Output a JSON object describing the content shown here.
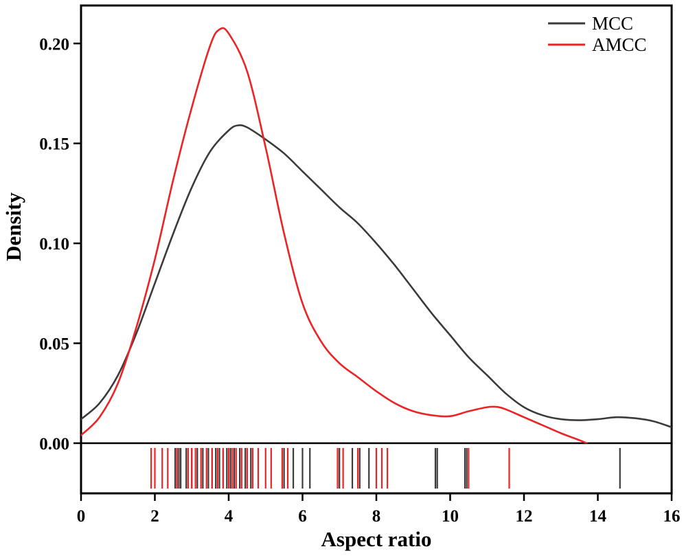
{
  "chart_data": {
    "type": "line",
    "variant": "kde-density-with-rug",
    "title": "",
    "xlabel": "Aspect ratio",
    "ylabel": "Density",
    "xlim": [
      0,
      16
    ],
    "ylim": [
      0,
      0.219
    ],
    "grid": false,
    "legend": {
      "position": "top-right"
    },
    "xticks": {
      "values": [
        0,
        2,
        4,
        6,
        8,
        10,
        12,
        14,
        16
      ],
      "labels": [
        "0",
        "2",
        "4",
        "6",
        "8",
        "10",
        "12",
        "14",
        "16"
      ]
    },
    "yticks": {
      "values": [
        0,
        0.05,
        0.1,
        0.15,
        0.2
      ],
      "labels": [
        "0.00",
        "0.05",
        "0.10",
        "0.15",
        "0.20"
      ]
    },
    "series": [
      {
        "name": "MCC",
        "color": "#3b3b3b",
        "x": [
          0,
          0.5,
          1,
          1.5,
          2,
          2.5,
          3,
          3.5,
          4,
          4.25,
          4.5,
          5,
          5.5,
          6,
          6.5,
          7,
          7.5,
          8,
          8.5,
          9,
          9.5,
          10,
          10.5,
          11,
          11.5,
          12,
          12.5,
          13,
          13.5,
          14,
          14.5,
          15,
          15.5,
          16
        ],
        "y": [
          0.012,
          0.02,
          0.034,
          0.055,
          0.08,
          0.105,
          0.128,
          0.146,
          0.1565,
          0.159,
          0.158,
          0.152,
          0.145,
          0.136,
          0.127,
          0.118,
          0.11,
          0.1,
          0.089,
          0.077,
          0.065,
          0.054,
          0.043,
          0.034,
          0.025,
          0.018,
          0.014,
          0.012,
          0.0115,
          0.012,
          0.013,
          0.0125,
          0.011,
          0.008
        ],
        "rug": [
          2.55,
          2.6,
          2.65,
          2.7,
          2.85,
          3.0,
          3.15,
          3.3,
          3.45,
          3.55,
          3.65,
          3.75,
          3.85,
          3.95,
          4.05,
          4.15,
          4.3,
          4.45,
          4.6,
          5.5,
          5.75,
          6.0,
          6.2,
          7.0,
          7.35,
          7.55,
          7.8,
          9.6,
          9.65,
          10.4,
          10.45,
          14.6
        ]
      },
      {
        "name": "AMCC",
        "color": "#ed2224",
        "x": [
          0,
          0.5,
          1,
          1.5,
          2,
          2.5,
          3,
          3.5,
          3.75,
          4,
          4.5,
          5,
          5.5,
          6,
          6.5,
          7,
          7.5,
          8,
          8.5,
          9,
          9.5,
          10,
          10.5,
          11,
          11.25,
          11.5,
          12,
          12.5,
          13,
          13.5,
          13.7
        ],
        "y": [
          0.004,
          0.013,
          0.03,
          0.058,
          0.092,
          0.132,
          0.168,
          0.199,
          0.207,
          0.205,
          0.186,
          0.148,
          0.105,
          0.07,
          0.051,
          0.04,
          0.033,
          0.026,
          0.02,
          0.016,
          0.014,
          0.0135,
          0.016,
          0.018,
          0.0182,
          0.017,
          0.013,
          0.009,
          0.005,
          0.0015,
          0
        ],
        "rug": [
          1.9,
          2.0,
          2.2,
          2.35,
          2.6,
          2.9,
          3.0,
          3.1,
          3.25,
          3.4,
          3.55,
          3.7,
          3.85,
          4.0,
          4.1,
          4.2,
          4.35,
          4.5,
          4.65,
          4.8,
          5.0,
          5.15,
          5.45,
          5.6,
          6.95,
          7.1,
          7.5,
          8.0,
          8.15,
          8.3,
          10.5,
          11.6
        ]
      }
    ]
  }
}
